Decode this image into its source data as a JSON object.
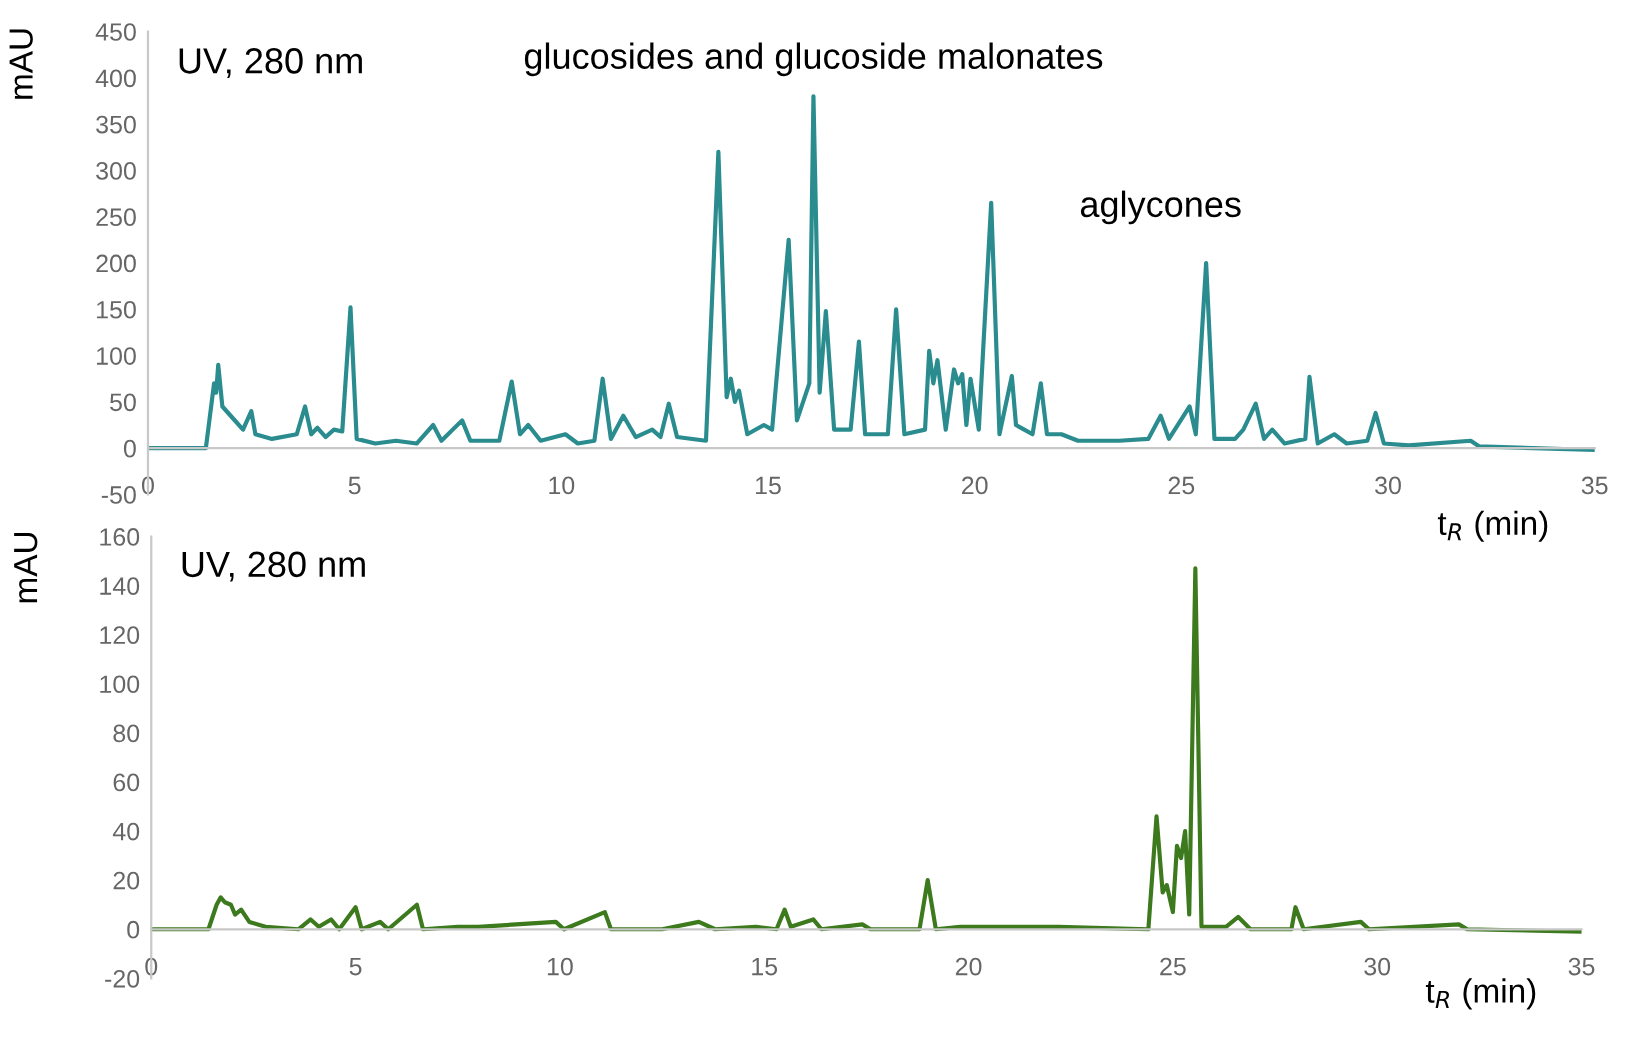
{
  "chart_data": [
    {
      "type": "line",
      "ylabel": "mAU",
      "xlabel": "t$_{R}$ (min)",
      "xlim": [
        0,
        35
      ],
      "ylim": [
        -50,
        450
      ],
      "xticks": [
        0,
        5,
        10,
        15,
        20,
        25,
        30,
        35
      ],
      "yticks": [
        -50,
        0,
        50,
        100,
        150,
        200,
        250,
        300,
        350,
        400,
        450
      ],
      "annotations": [
        "UV, 280 nm",
        "glucosides and glucoside malonates",
        "aglycones"
      ],
      "series": [
        {
          "color": "#2a8c8f",
          "x": [
            0,
            1.4,
            1.6,
            1.65,
            1.7,
            1.8,
            2.0,
            2.3,
            2.5,
            2.6,
            3.0,
            3.6,
            3.8,
            3.95,
            4.1,
            4.3,
            4.5,
            4.7,
            4.9,
            5.05,
            5.5,
            6.0,
            6.5,
            6.9,
            7.1,
            7.6,
            7.8,
            8.5,
            8.8,
            9.0,
            9.2,
            9.5,
            10.1,
            10.4,
            10.8,
            11.0,
            11.2,
            11.5,
            11.8,
            12.2,
            12.4,
            12.6,
            12.8,
            13.5,
            13.8,
            14.0,
            14.1,
            14.2,
            14.3,
            14.5,
            14.9,
            15.1,
            15.5,
            15.7,
            16.0,
            16.1,
            16.25,
            16.4,
            16.6,
            17.0,
            17.2,
            17.35,
            17.9,
            18.1,
            18.3,
            18.8,
            18.9,
            19.0,
            19.1,
            19.3,
            19.5,
            19.6,
            19.7,
            19.8,
            19.9,
            20.1,
            20.4,
            20.6,
            20.9,
            21.0,
            21.2,
            21.4,
            21.6,
            21.75,
            22.1,
            22.5,
            23.5,
            24.2,
            24.5,
            24.7,
            25.2,
            25.35,
            25.6,
            25.8,
            26.3,
            26.5,
            26.8,
            27.0,
            27.2,
            27.5,
            28.0,
            28.1,
            28.3,
            28.7,
            29.0,
            29.5,
            29.7,
            29.9,
            30.5,
            32.0,
            32.2,
            33.5,
            35
          ],
          "values": [
            0,
            0,
            70,
            60,
            90,
            45,
            35,
            20,
            40,
            15,
            10,
            15,
            45,
            15,
            22,
            12,
            20,
            18,
            152,
            10,
            5,
            8,
            5,
            25,
            8,
            30,
            8,
            8,
            72,
            15,
            25,
            8,
            15,
            5,
            8,
            75,
            10,
            35,
            12,
            20,
            12,
            48,
            12,
            8,
            320,
            55,
            75,
            50,
            62,
            15,
            25,
            20,
            225,
            30,
            70,
            380,
            60,
            148,
            20,
            20,
            115,
            15,
            15,
            150,
            15,
            20,
            105,
            70,
            95,
            20,
            85,
            70,
            80,
            25,
            75,
            20,
            265,
            15,
            78,
            25,
            20,
            15,
            70,
            15,
            15,
            8,
            8,
            10,
            35,
            10,
            45,
            15,
            200,
            10,
            10,
            20,
            48,
            10,
            20,
            5,
            10,
            77,
            5,
            15,
            5,
            8,
            38,
            5,
            3,
            8,
            2,
            0,
            -2
          ]
        }
      ]
    },
    {
      "type": "line",
      "ylabel": "mAU",
      "xlabel": "t$_{R}$ (min)",
      "xlim": [
        0,
        35
      ],
      "ylim": [
        -20,
        160
      ],
      "xticks": [
        0,
        5,
        10,
        15,
        20,
        25,
        30,
        35
      ],
      "yticks": [
        -20,
        0,
        20,
        40,
        60,
        80,
        100,
        120,
        140,
        160
      ],
      "annotations": [
        "UV, 280 nm"
      ],
      "series": [
        {
          "color": "#3d7a1e",
          "x": [
            0,
            1.4,
            1.6,
            1.7,
            1.8,
            1.95,
            2.05,
            2.2,
            2.4,
            2.8,
            3.6,
            3.9,
            4.1,
            4.4,
            4.6,
            5.0,
            5.15,
            5.6,
            5.8,
            6.5,
            6.65,
            7.5,
            8.0,
            9.9,
            10.1,
            11.1,
            11.25,
            12.5,
            13.4,
            13.8,
            14.8,
            15.3,
            15.5,
            15.65,
            16.2,
            16.4,
            17.4,
            17.6,
            18.8,
            19.0,
            19.2,
            19.8,
            22.2,
            24.4,
            24.6,
            24.75,
            24.85,
            25.0,
            25.1,
            25.2,
            25.3,
            25.4,
            25.55,
            25.7,
            26.3,
            26.6,
            26.9,
            27.9,
            28.0,
            28.2,
            29.6,
            29.8,
            32.0,
            32.2,
            35
          ],
          "values": [
            0,
            0,
            10,
            13,
            11,
            10,
            6,
            8,
            3,
            1,
            0,
            4,
            1,
            4,
            0,
            9,
            0,
            3,
            0,
            10,
            0,
            1,
            1,
            3,
            0,
            7,
            0,
            0,
            3,
            0,
            1,
            0,
            8,
            1,
            4,
            0,
            2,
            0,
            0,
            20,
            0,
            1,
            1,
            0,
            46,
            15,
            18,
            7,
            34,
            29,
            40,
            6,
            147,
            1,
            1,
            5,
            0,
            0,
            9,
            0,
            3,
            0,
            2,
            0,
            -1
          ]
        }
      ]
    }
  ]
}
